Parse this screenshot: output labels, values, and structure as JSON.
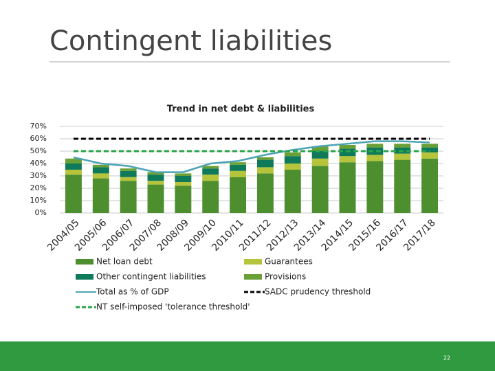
{
  "slide": {
    "title": "Contingent liabilities",
    "page_number": "22"
  },
  "chart_data": {
    "type": "bar",
    "stacked": true,
    "title": "Trend in net debt & liabilities",
    "categories": [
      "2004/05",
      "2005/06",
      "2006/07",
      "2007/08",
      "2008/09",
      "2009/10",
      "2010/11",
      "2011/12",
      "2012/13",
      "2013/14",
      "2014/15",
      "2015/16",
      "2016/17",
      "2017/18"
    ],
    "series": [
      {
        "name": "Net loan debt",
        "type": "bar",
        "color": "#4d8f2f",
        "values": [
          31,
          28,
          26,
          23,
          22,
          26,
          29,
          32,
          35,
          38,
          41,
          42,
          43,
          44
        ]
      },
      {
        "name": "Guarantees",
        "type": "bar",
        "color": "#b5c43a",
        "values": [
          4,
          4,
          3,
          3,
          3,
          5,
          5,
          5,
          5,
          6,
          5,
          5,
          5,
          5
        ]
      },
      {
        "name": "Other contingent liabilities",
        "type": "bar",
        "color": "#0e7a5a",
        "values": [
          5,
          5,
          5,
          5,
          5,
          5,
          5,
          6,
          6,
          6,
          6,
          6,
          5,
          4
        ]
      },
      {
        "name": "Provisions",
        "type": "bar",
        "color": "#6aa035",
        "values": [
          4,
          2,
          2,
          2,
          2,
          2,
          2,
          2,
          3,
          4,
          3,
          3,
          3,
          3
        ]
      },
      {
        "name": "Total as % of GDP",
        "type": "line",
        "color": "#4aa3b5",
        "dash": false,
        "values": [
          45,
          40,
          38,
          33,
          33,
          40,
          42,
          47,
          51,
          54,
          56,
          58,
          58,
          57
        ]
      },
      {
        "name": "SADC prudency threshold",
        "type": "line",
        "color": "#000000",
        "dash": true,
        "values": [
          60,
          60,
          60,
          60,
          60,
          60,
          60,
          60,
          60,
          60,
          60,
          60,
          60,
          60
        ]
      },
      {
        "name": "NT self-imposed 'tolerance threshold'",
        "type": "line",
        "color": "#2aa54a",
        "dash": true,
        "values": [
          50,
          50,
          50,
          50,
          50,
          50,
          50,
          50,
          50,
          50,
          50,
          50,
          50,
          50
        ]
      }
    ],
    "ylim": [
      0,
      70
    ],
    "yticks": [
      {
        "value": 0,
        "label": "0%"
      },
      {
        "value": 10,
        "label": "10%"
      },
      {
        "value": 20,
        "label": "20%"
      },
      {
        "value": 30,
        "label": "30%"
      },
      {
        "value": 40,
        "label": "40%"
      },
      {
        "value": 50,
        "label": "50%"
      },
      {
        "value": 60,
        "label": "60%"
      },
      {
        "value": 70,
        "label": "70%"
      }
    ],
    "grid": true
  }
}
